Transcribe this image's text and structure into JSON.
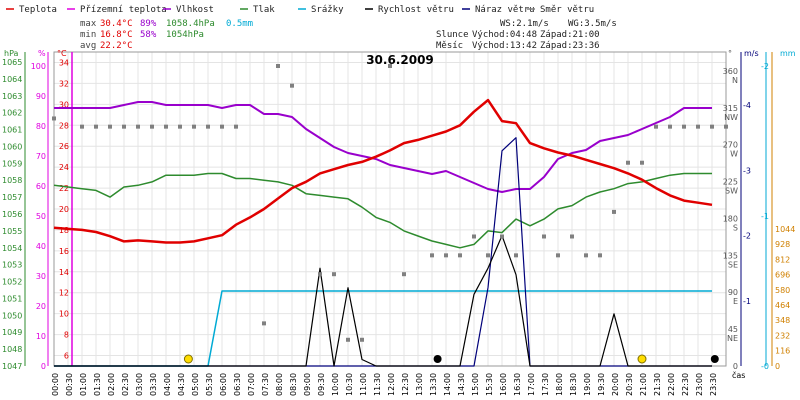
{
  "legend": [
    {
      "label": "Teplota",
      "color": "#e00000"
    },
    {
      "label": "Přízemní teplota",
      "color": "#e000e0"
    },
    {
      "label": "Vlhkost",
      "color": "#9900cc"
    },
    {
      "label": "Tlak",
      "color": "#2e8b2e"
    },
    {
      "label": "Srážky",
      "color": "#00aad4"
    },
    {
      "label": "Rychlost větru",
      "color": "#000000"
    },
    {
      "label": "Náraz větru",
      "color": "#00007a"
    },
    {
      "label": "Směr větru",
      "color": "#808080"
    }
  ],
  "stats": {
    "max": {
      "label": "max",
      "temp": "30.4°C",
      "hum": "89%",
      "press": "1058.4hPa",
      "rain": "0.5mm"
    },
    "min": {
      "label": "min",
      "temp": "16.8°C",
      "hum": "58%",
      "press": "1054hPa"
    },
    "avg": {
      "label": "avg",
      "temp": "22.2°C"
    }
  },
  "wind": {
    "ws": "WS:2.1m/s",
    "wg": "WG:3.5m/s"
  },
  "sun": {
    "label": "Slunce",
    "rise": "Východ:04:48",
    "set": "Západ:21:00"
  },
  "moon": {
    "label": "Měsíc",
    "rise": "Východ:13:42",
    "set": "Západ:23:36"
  },
  "date": "30.6.2009",
  "axes": {
    "hpa_unit": "hPa",
    "pct_unit": "%",
    "c_unit": "°C",
    "deg_unit": "°",
    "ms_unit": "m/s",
    "mm_unit": "mm",
    "time_unit": "čas",
    "hpa_ticks": [
      "1065",
      "1064",
      "1063",
      "1062",
      "1061",
      "1060",
      "1059",
      "1058",
      "1057",
      "1056",
      "1055",
      "1054",
      "1053",
      "1052",
      "1051",
      "1050",
      "1049",
      "1048",
      "1047"
    ],
    "pct_ticks": [
      "100",
      "90",
      "80",
      "70",
      "60",
      "50",
      "40",
      "30",
      "20",
      "10",
      "0"
    ],
    "c_ticks": [
      "34",
      "32",
      "30",
      "28",
      "26",
      "24",
      "22",
      "20",
      "18",
      "16",
      "14",
      "12",
      "10",
      "8",
      "6"
    ],
    "dir_ticks": [
      {
        "deg": "360",
        "dir": "N"
      },
      {
        "deg": "315",
        "dir": "NW"
      },
      {
        "deg": "270",
        "dir": "W"
      },
      {
        "deg": "225",
        "dir": "SW"
      },
      {
        "deg": "180",
        "dir": "S"
      },
      {
        "deg": "135",
        "dir": "SE"
      },
      {
        "deg": "90",
        "dir": "E"
      },
      {
        "deg": "45",
        "dir": "NE"
      },
      {
        "deg": "0",
        "dir": ""
      }
    ],
    "ms_ticks": [
      {
        "v": 2,
        "label": "-2"
      },
      {
        "v": 1,
        "label": "-1"
      },
      {
        "v": 0,
        "label": "-0"
      }
    ],
    "ws_ticks": [
      {
        "v": 4,
        "label": "-4"
      },
      {
        "v": 3,
        "label": "-3"
      },
      {
        "v": 2,
        "label": "-2"
      },
      {
        "v": 1,
        "label": "-1"
      }
    ],
    "mm_ticks": [
      "1044",
      "928",
      "812",
      "696",
      "580",
      "464",
      "348",
      "232",
      "116",
      "0"
    ],
    "time_ticks": [
      "00:00",
      "00:30",
      "01:00",
      "01:30",
      "02:00",
      "02:30",
      "03:00",
      "03:30",
      "04:00",
      "04:30",
      "05:00",
      "05:30",
      "06:00",
      "06:30",
      "07:00",
      "07:30",
      "08:00",
      "08:30",
      "09:00",
      "09:30",
      "10:00",
      "10:30",
      "11:00",
      "11:30",
      "12:00",
      "12:30",
      "13:00",
      "13:30",
      "14:00",
      "14:30",
      "15:00",
      "15:30",
      "16:00",
      "16:30",
      "17:00",
      "17:30",
      "18:00",
      "18:30",
      "19:00",
      "19:30",
      "20:00",
      "20:30",
      "21:00",
      "21:30",
      "22:00",
      "22:30",
      "23:00",
      "23:30"
    ]
  },
  "chart_data": {
    "type": "line",
    "title": "30.6.2009",
    "xlabel": "čas",
    "x_hours": [
      0,
      0.5,
      1,
      1.5,
      2,
      2.5,
      3,
      3.5,
      4,
      4.5,
      5,
      5.5,
      6,
      6.5,
      7,
      7.5,
      8,
      8.5,
      9,
      9.5,
      10,
      10.5,
      11,
      11.5,
      12,
      12.5,
      13,
      13.5,
      14,
      14.5,
      15,
      15.5,
      16,
      16.5,
      17,
      17.5,
      18,
      18.5,
      19,
      19.5,
      20,
      20.5,
      21,
      21.5,
      22,
      22.5,
      23,
      23.5
    ],
    "series": [
      {
        "name": "Teplota",
        "unit": "°C",
        "color": "#e00000",
        "values": [
          18.2,
          18.1,
          18.0,
          17.8,
          17.4,
          16.9,
          17.0,
          16.9,
          16.8,
          16.8,
          16.9,
          17.2,
          17.5,
          18.5,
          19.2,
          20.0,
          21.0,
          22.0,
          22.6,
          23.4,
          23.8,
          24.2,
          24.5,
          25.0,
          25.6,
          26.3,
          26.6,
          27.0,
          27.4,
          28.0,
          29.3,
          30.4,
          28.4,
          28.2,
          26.3,
          25.8,
          25.4,
          25.1,
          24.7,
          24.3,
          23.9,
          23.4,
          22.8,
          22.0,
          21.3,
          20.8,
          20.6,
          20.4
        ]
      },
      {
        "name": "Vlhkost",
        "unit": "%",
        "color": "#9900cc",
        "values": [
          86,
          86,
          86,
          86,
          86,
          87,
          88,
          88,
          87,
          87,
          87,
          87,
          86,
          87,
          87,
          84,
          84,
          83,
          79,
          76,
          73,
          71,
          70,
          69,
          67,
          66,
          65,
          64,
          65,
          63,
          61,
          59,
          58,
          59,
          59,
          63,
          69,
          71,
          72,
          75,
          76,
          77,
          79,
          81,
          83,
          86,
          86,
          86
        ]
      },
      {
        "name": "Tlak",
        "unit": "hPa",
        "color": "#2e8b2e",
        "values": [
          1057.7,
          1057.6,
          1057.5,
          1057.4,
          1057.0,
          1057.6,
          1057.7,
          1057.9,
          1058.3,
          1058.3,
          1058.3,
          1058.4,
          1058.4,
          1058.1,
          1058.1,
          1058.0,
          1057.9,
          1057.7,
          1057.2,
          1057.1,
          1057.0,
          1056.9,
          1056.4,
          1055.8,
          1055.5,
          1055.0,
          1054.7,
          1054.4,
          1054.2,
          1054.0,
          1054.2,
          1055.0,
          1054.9,
          1055.7,
          1055.3,
          1055.7,
          1056.3,
          1056.5,
          1057.0,
          1057.3,
          1057.5,
          1057.8,
          1057.9,
          1058.1,
          1058.3,
          1058.4,
          1058.4,
          1058.4
        ]
      },
      {
        "name": "Srážky",
        "unit": "mm",
        "color": "#00aad4",
        "values": [
          0,
          0,
          0,
          0,
          0,
          0,
          0,
          0,
          0,
          0,
          0,
          0,
          0.5,
          0.5,
          0.5,
          0.5,
          0.5,
          0.5,
          0.5,
          0.5,
          0.5,
          0.5,
          0.5,
          0.5,
          0.5,
          0.5,
          0.5,
          0.5,
          0.5,
          0.5,
          0.5,
          0.5,
          0.5,
          0.5,
          0.5,
          0.5,
          0.5,
          0.5,
          0.5,
          0.5,
          0.5,
          0.5,
          0.5,
          0.5,
          0.5,
          0.5,
          0.5,
          0.5
        ]
      },
      {
        "name": "Rychlost větru",
        "unit": "m/s",
        "color": "#000000",
        "values": [
          0,
          0,
          0,
          0,
          0,
          0,
          0,
          0,
          0,
          0,
          0,
          0,
          0,
          0,
          0,
          0,
          0,
          0,
          0,
          1.5,
          0,
          1.2,
          0.1,
          0,
          0,
          0,
          0,
          0,
          0,
          0,
          1.1,
          1.5,
          2.0,
          1.4,
          0,
          0,
          0,
          0,
          0,
          0,
          0.8,
          0,
          0,
          0,
          0,
          0,
          0,
          0
        ]
      },
      {
        "name": "Náraz větru",
        "unit": "m/s",
        "color": "#00007a",
        "values": [
          0,
          0,
          0,
          0,
          0,
          0,
          0,
          0,
          0,
          0,
          0,
          0,
          0,
          0,
          0,
          0,
          0,
          0,
          0,
          0,
          0,
          0,
          0,
          0,
          0,
          0,
          0,
          0,
          0,
          0,
          0,
          1.2,
          3.3,
          3.5,
          0,
          0,
          0,
          0,
          0,
          0,
          0,
          0,
          0,
          0,
          0,
          0,
          0,
          0
        ]
      },
      {
        "name": "Směr větru",
        "unit": "°",
        "color": "#808080",
        "points": [
          [
            0,
            302
          ],
          [
            1,
            292
          ],
          [
            1.5,
            292
          ],
          [
            2,
            292
          ],
          [
            2.5,
            292
          ],
          [
            3,
            292
          ],
          [
            3.5,
            292
          ],
          [
            4,
            292
          ],
          [
            4.5,
            292
          ],
          [
            5,
            292
          ],
          [
            5.5,
            292
          ],
          [
            6,
            292
          ],
          [
            6.5,
            292
          ],
          [
            7.5,
            52
          ],
          [
            8,
            366
          ],
          [
            8.5,
            342
          ],
          [
            9.5,
            112
          ],
          [
            10,
            112
          ],
          [
            10.5,
            32
          ],
          [
            11,
            32
          ],
          [
            12,
            366
          ],
          [
            12.5,
            112
          ],
          [
            13.5,
            135
          ],
          [
            14,
            135
          ],
          [
            14.5,
            135
          ],
          [
            15,
            158
          ],
          [
            15.5,
            135
          ],
          [
            16,
            158
          ],
          [
            16.5,
            135
          ],
          [
            17.5,
            158
          ],
          [
            18,
            135
          ],
          [
            18.5,
            158
          ],
          [
            19,
            135
          ],
          [
            19.5,
            135
          ],
          [
            20,
            188
          ],
          [
            20.5,
            248
          ],
          [
            21,
            248
          ],
          [
            21.5,
            292
          ],
          [
            22,
            292
          ],
          [
            22.5,
            292
          ],
          [
            23,
            292
          ],
          [
            23.5,
            292
          ],
          [
            24,
            292
          ]
        ]
      }
    ],
    "markers": [
      {
        "name": "sunrise",
        "x_hour": 4.8
      },
      {
        "name": "moonrise",
        "x_hour": 13.7
      },
      {
        "name": "sunset",
        "x_hour": 21.0
      },
      {
        "name": "moonset",
        "x_hour": 23.6
      }
    ]
  }
}
